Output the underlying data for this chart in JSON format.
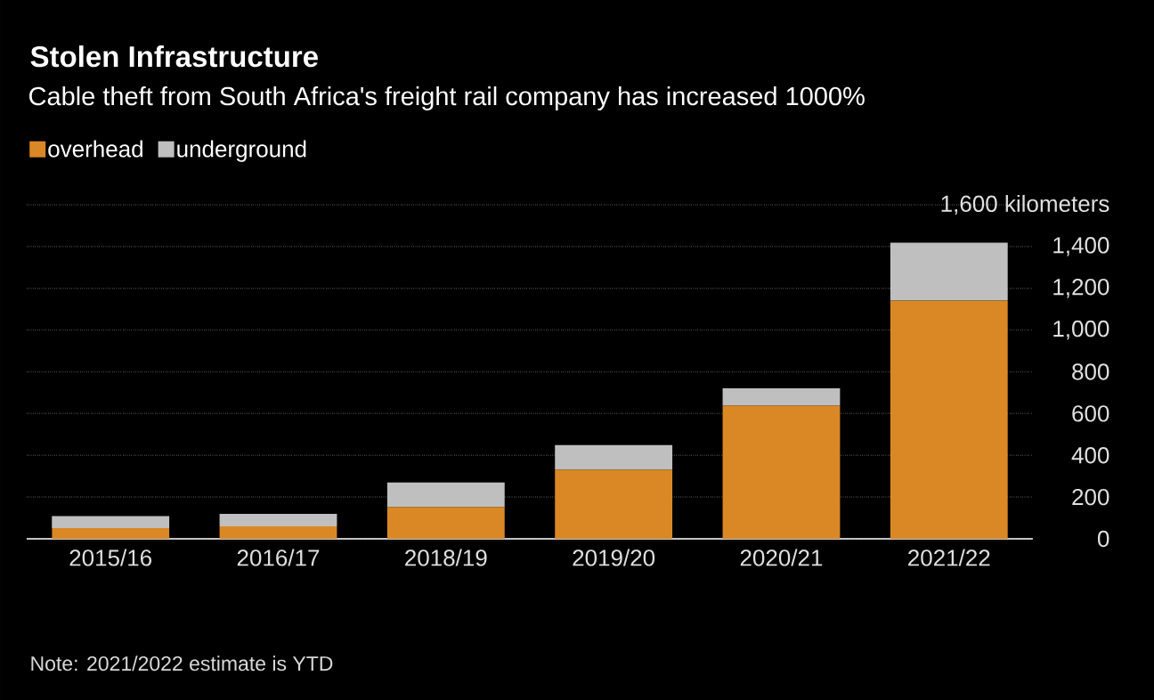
{
  "chart_data": {
    "type": "bar",
    "stacked": true,
    "title": "Stolen Infrastructure",
    "subtitle": "Cable theft from South Africa's freight rail company has increased 1000%",
    "categories": [
      "2015/16",
      "2016/17",
      "2018/19",
      "2019/20",
      "2020/21",
      "2021/22"
    ],
    "series": [
      {
        "name": "overhead",
        "color": "#da8825",
        "values": [
          51,
          60,
          153,
          331,
          638,
          1141
        ]
      },
      {
        "name": "underground",
        "color": "#bfbfbf",
        "values": [
          58,
          59,
          117,
          118,
          83,
          278
        ]
      }
    ],
    "ylim": [
      0,
      1600
    ],
    "yticks": [
      0,
      200,
      400,
      600,
      800,
      {
        "value": 1000,
        "label": "1,000"
      },
      {
        "value": 1200,
        "label": "1,200"
      },
      {
        "value": 1400,
        "label": "1,400"
      },
      {
        "value": 1600,
        "label": "1,600 kilometers"
      }
    ],
    "grid": "y",
    "legend": "top left",
    "annotations": [
      "Note: 2021/2022 estimate is YTD"
    ]
  }
}
